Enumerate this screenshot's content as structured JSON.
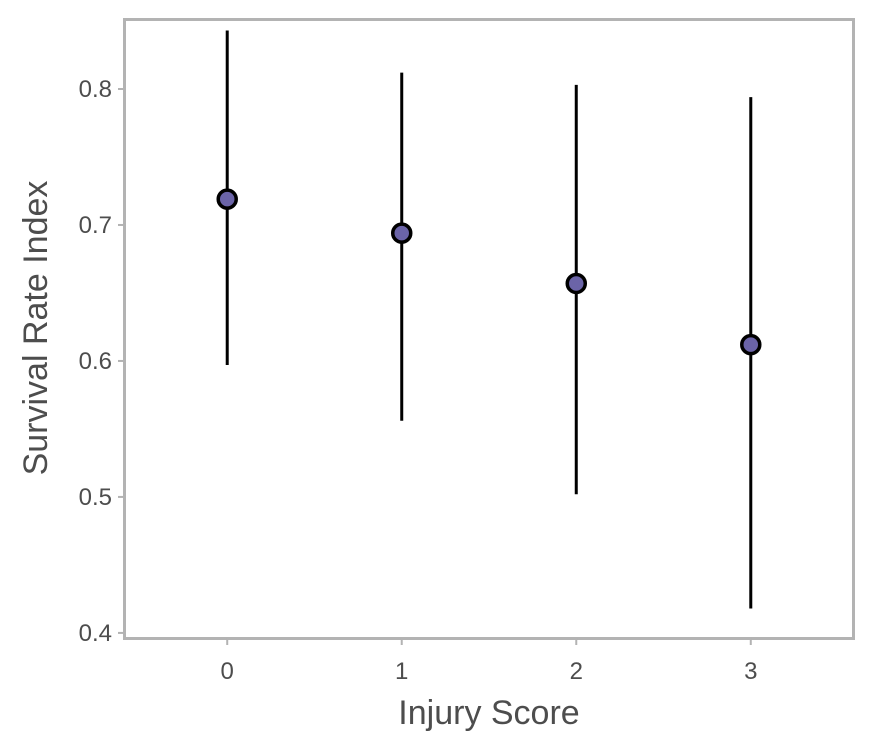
{
  "chart_data": {
    "type": "scatter",
    "title": "",
    "xlabel": "Injury Score",
    "ylabel": "Survival Rate Index",
    "x_ticks": [
      "0",
      "1",
      "2",
      "3"
    ],
    "y_ticks": [
      "0.4",
      "0.5",
      "0.6",
      "0.7",
      "0.8"
    ],
    "xlim": [
      -0.58,
      3.58
    ],
    "ylim": [
      0.397,
      0.85
    ],
    "grid": false,
    "legend": "none",
    "series": [
      {
        "x": [
          0,
          1,
          2,
          3
        ],
        "y": [
          0.719,
          0.694,
          0.657,
          0.612
        ],
        "lower": [
          0.597,
          0.556,
          0.502,
          0.418
        ],
        "upper": [
          0.843,
          0.812,
          0.803,
          0.794
        ]
      }
    ],
    "colors": {
      "point_fill": "#6b64a8",
      "point_stroke": "#000000",
      "error_bar": "#000000",
      "panel_border": "#b3b3b3",
      "axis_text": "#4d4d4d"
    }
  }
}
